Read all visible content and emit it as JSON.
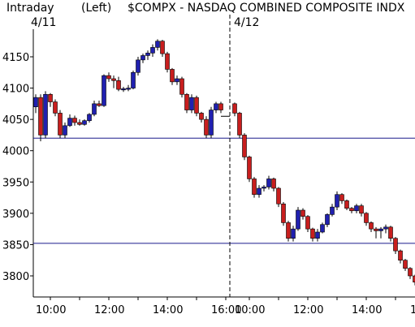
{
  "header": {
    "interval": "Intraday",
    "scale": "(Left)",
    "symbol_title": "$COMPX - NASDAQ COMBINED COMPOSITE INDX"
  },
  "colors": {
    "up": "#2020b0",
    "down": "#c81e1e",
    "ref_line": "#1a1a8c",
    "grid_tick": "#000000",
    "background": "#ffffff"
  },
  "chart_data": {
    "type": "candlestick",
    "title": "$COMPX - NASDAQ COMBINED COMPOSITE INDX",
    "y_axis_side": "left",
    "ylim": [
      3770,
      4190
    ],
    "yticks": [
      3800,
      3850,
      3900,
      3950,
      4000,
      4050,
      4100,
      4150
    ],
    "ytick_labels": [
      "3800",
      "3850",
      "3900",
      "3950",
      "4000",
      "4050",
      "4100",
      "4150"
    ],
    "reference_lines": [
      4020,
      3852
    ],
    "days": [
      {
        "label": "4/11",
        "session_start": "09:30",
        "session_end": "16:00"
      },
      {
        "label": "4/12",
        "session_start": "09:30",
        "session_end": "16:00"
      }
    ],
    "xtick_labels": [
      "10:00",
      "12:00",
      "14:00",
      "16:00",
      "10:00",
      "12:00",
      "14:00",
      "16:00"
    ],
    "bar_interval_minutes": 10,
    "after_hours_flat_line": 4055,
    "series": [
      {
        "day": "4/11",
        "start_time": "09:30",
        "ohlc": [
          [
            4070,
            4090,
            4060,
            4085
          ],
          [
            4085,
            4090,
            4015,
            4025
          ],
          [
            4025,
            4095,
            4020,
            4090
          ],
          [
            4090,
            4092,
            4070,
            4078
          ],
          [
            4078,
            4082,
            4055,
            4060
          ],
          [
            4060,
            4065,
            4020,
            4025
          ],
          [
            4025,
            4045,
            4020,
            4040
          ],
          [
            4040,
            4058,
            4038,
            4052
          ],
          [
            4052,
            4056,
            4040,
            4045
          ],
          [
            4045,
            4050,
            4040,
            4042
          ],
          [
            4042,
            4050,
            4040,
            4048
          ],
          [
            4048,
            4060,
            4045,
            4058
          ],
          [
            4058,
            4080,
            4055,
            4075
          ],
          [
            4075,
            4080,
            4070,
            4072
          ],
          [
            4072,
            4122,
            4070,
            4120
          ],
          [
            4120,
            4125,
            4110,
            4115
          ],
          [
            4115,
            4120,
            4100,
            4112
          ],
          [
            4112,
            4118,
            4095,
            4098
          ],
          [
            4098,
            4102,
            4094,
            4099
          ],
          [
            4099,
            4105,
            4095,
            4100
          ],
          [
            4100,
            4128,
            4098,
            4125
          ],
          [
            4125,
            4150,
            4120,
            4145
          ],
          [
            4145,
            4155,
            4140,
            4152
          ],
          [
            4152,
            4160,
            4145,
            4156
          ],
          [
            4156,
            4170,
            4150,
            4165
          ],
          [
            4165,
            4178,
            4160,
            4175
          ],
          [
            4175,
            4177,
            4150,
            4155
          ],
          [
            4155,
            4158,
            4125,
            4130
          ],
          [
            4130,
            4132,
            4105,
            4110
          ],
          [
            4110,
            4120,
            4105,
            4115
          ],
          [
            4115,
            4118,
            4085,
            4090
          ],
          [
            4090,
            4092,
            4060,
            4065
          ],
          [
            4065,
            4090,
            4060,
            4085
          ],
          [
            4085,
            4088,
            4055,
            4060
          ],
          [
            4060,
            4062,
            4045,
            4050
          ],
          [
            4050,
            4055,
            4020,
            4025
          ],
          [
            4025,
            4070,
            4020,
            4065
          ],
          [
            4065,
            4078,
            4060,
            4075
          ],
          [
            4075,
            4078,
            4060,
            4065
          ]
        ]
      },
      {
        "day": "4/12",
        "start_time": "09:30",
        "ohlc": [
          [
            4075,
            4077,
            4055,
            4060
          ],
          [
            4060,
            4062,
            4020,
            4025
          ],
          [
            4025,
            4028,
            3985,
            3990
          ],
          [
            3990,
            3992,
            3950,
            3955
          ],
          [
            3955,
            3958,
            3925,
            3930
          ],
          [
            3930,
            3945,
            3925,
            3940
          ],
          [
            3940,
            3945,
            3935,
            3942
          ],
          [
            3942,
            3960,
            3938,
            3955
          ],
          [
            3955,
            3957,
            3935,
            3940
          ],
          [
            3940,
            3942,
            3910,
            3915
          ],
          [
            3915,
            3918,
            3880,
            3885
          ],
          [
            3885,
            3888,
            3855,
            3860
          ],
          [
            3860,
            3880,
            3855,
            3875
          ],
          [
            3875,
            3910,
            3872,
            3905
          ],
          [
            3905,
            3908,
            3890,
            3895
          ],
          [
            3895,
            3897,
            3870,
            3875
          ],
          [
            3875,
            3877,
            3855,
            3860
          ],
          [
            3860,
            3875,
            3855,
            3870
          ],
          [
            3870,
            3885,
            3868,
            3882
          ],
          [
            3882,
            3900,
            3878,
            3898
          ],
          [
            3898,
            3915,
            3895,
            3910
          ],
          [
            3910,
            3935,
            3905,
            3930
          ],
          [
            3930,
            3932,
            3915,
            3920
          ],
          [
            3920,
            3922,
            3905,
            3908
          ],
          [
            3908,
            3910,
            3900,
            3904
          ],
          [
            3904,
            3915,
            3900,
            3912
          ],
          [
            3912,
            3915,
            3895,
            3900
          ],
          [
            3900,
            3902,
            3880,
            3885
          ],
          [
            3885,
            3887,
            3870,
            3875
          ],
          [
            3875,
            3878,
            3860,
            3872
          ],
          [
            3872,
            3878,
            3860,
            3875
          ],
          [
            3875,
            3882,
            3868,
            3878
          ],
          [
            3878,
            3880,
            3855,
            3860
          ],
          [
            3860,
            3862,
            3835,
            3840
          ],
          [
            3840,
            3842,
            3820,
            3825
          ],
          [
            3825,
            3827,
            3808,
            3812
          ],
          [
            3812,
            3814,
            3795,
            3800
          ],
          [
            3800,
            3802,
            3785,
            3790
          ],
          [
            3790,
            3792,
            3772,
            3775
          ]
        ]
      }
    ]
  }
}
